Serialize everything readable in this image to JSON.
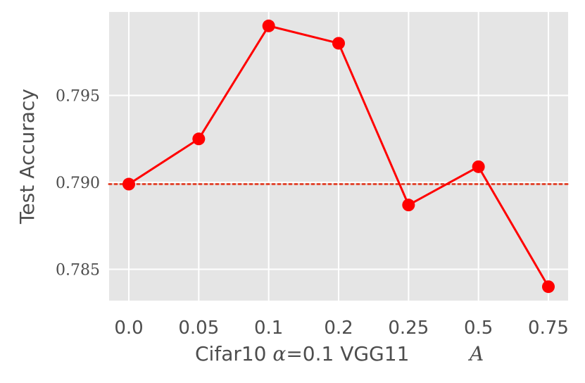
{
  "chart_data": {
    "type": "line",
    "categories": [
      "0.0",
      "0.05",
      "0.1",
      "0.2",
      "0.25",
      "0.5",
      "0.75"
    ],
    "series": [
      {
        "values": [
          0.7899,
          0.7925,
          0.799,
          0.798,
          0.7887,
          0.7909,
          0.784
        ],
        "color": "#ff0000"
      }
    ],
    "baseline": {
      "value": 0.7899,
      "color": "#e24a33",
      "style": "dotted"
    },
    "ylim": [
      0.7832,
      0.7998
    ],
    "yticks": [
      {
        "value": 0.785,
        "label": "0.785"
      },
      {
        "value": 0.79,
        "label": "0.790"
      },
      {
        "value": 0.795,
        "label": "0.795"
      }
    ],
    "ylabel": "Test Accuracy",
    "xlabel": {
      "prefix": "Cifar10 ",
      "alpha_symbol": "α",
      "alpha_value": "=0.1 VGG11",
      "variable": "A"
    },
    "grid": true,
    "background": "#e5e5e5",
    "grid_color": "#ffffff"
  }
}
